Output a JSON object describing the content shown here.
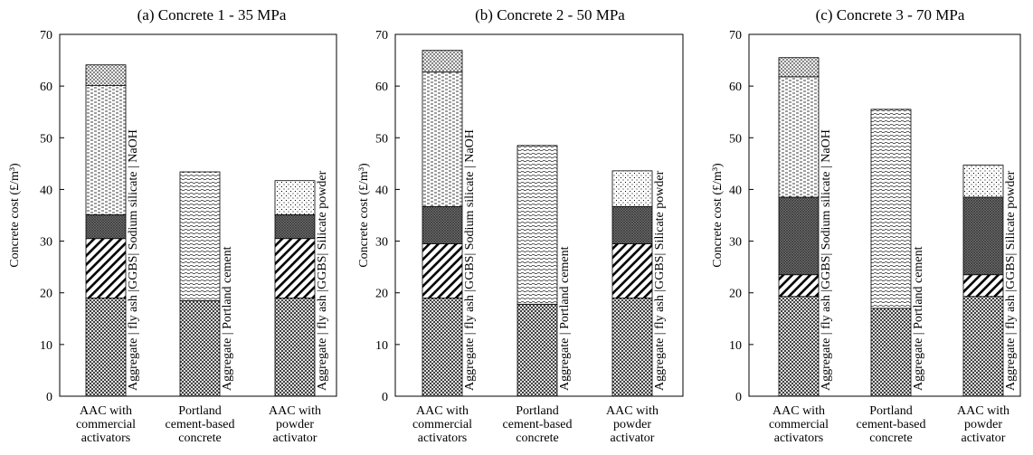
{
  "chart_data": [
    {
      "type": "bar",
      "stacked": true,
      "title": "(a) Concrete 1 - 35 MPa",
      "ylabel": "Concrete cost (£/m³)",
      "ylim": [
        0,
        70
      ],
      "yticks": [
        "0",
        "10",
        "20",
        "30",
        "40",
        "50",
        "60",
        "70"
      ],
      "categories": [
        [
          "AAC with",
          "commercial",
          "activators"
        ],
        [
          "Portland",
          "cement-based",
          "concrete"
        ],
        [
          "AAC with",
          "powder",
          "activator"
        ]
      ],
      "bars": [
        {
          "segments": [
            {
              "component": "Aggregate",
              "value": 19.0,
              "pattern": "pat-agg"
            },
            {
              "component": "fly ash",
              "value": 11.5,
              "pattern": "pat-fly"
            },
            {
              "component": "GGBS",
              "value": 4.6,
              "pattern": "pat-ggbs"
            },
            {
              "component": "Sodium silicate",
              "value": 25.0,
              "pattern": "pat-ss"
            },
            {
              "component": "NaOH",
              "value": 4.0,
              "pattern": "pat-naoh"
            }
          ],
          "label": "Aggregate | fly ash |GGBS| Sodium silicate | NaOH"
        },
        {
          "segments": [
            {
              "component": "Aggregate",
              "value": 18.5,
              "pattern": "pat-agg"
            },
            {
              "component": "Portland cement",
              "value": 24.9,
              "pattern": "pat-pc"
            }
          ],
          "label": "Aggregate  |  Portland cement"
        },
        {
          "segments": [
            {
              "component": "Aggregate",
              "value": 19.0,
              "pattern": "pat-agg"
            },
            {
              "component": "fly ash",
              "value": 11.5,
              "pattern": "pat-fly"
            },
            {
              "component": "GGBS",
              "value": 4.6,
              "pattern": "pat-ggbs"
            },
            {
              "component": "Silicate powder",
              "value": 6.6,
              "pattern": "pat-sp"
            }
          ],
          "label": "Aggregate | fly ash |GGBS| Silicate powder"
        }
      ]
    },
    {
      "type": "bar",
      "stacked": true,
      "title": "(b) Concrete 2 - 50 MPa",
      "ylabel": "Concrete cost (£/m³)",
      "ylim": [
        0,
        70
      ],
      "yticks": [
        "0",
        "10",
        "20",
        "30",
        "40",
        "50",
        "60",
        "70"
      ],
      "categories": [
        [
          "AAC with",
          "commercial",
          "activators"
        ],
        [
          "Portland",
          "cement-based",
          "concrete"
        ],
        [
          "AAC with",
          "powder",
          "activator"
        ]
      ],
      "bars": [
        {
          "segments": [
            {
              "component": "Aggregate",
              "value": 19.0,
              "pattern": "pat-agg"
            },
            {
              "component": "fly ash",
              "value": 10.5,
              "pattern": "pat-fly"
            },
            {
              "component": "GGBS",
              "value": 7.2,
              "pattern": "pat-ggbs"
            },
            {
              "component": "Sodium silicate",
              "value": 26.0,
              "pattern": "pat-ss"
            },
            {
              "component": "NaOH",
              "value": 4.2,
              "pattern": "pat-naoh"
            }
          ],
          "label": "Aggregate | fly ash |GGBS| Sodium silicate | NaOH"
        },
        {
          "segments": [
            {
              "component": "Aggregate",
              "value": 17.8,
              "pattern": "pat-agg"
            },
            {
              "component": "Portland cement",
              "value": 30.7,
              "pattern": "pat-pc"
            }
          ],
          "label": "Aggregate  |  Portland cement"
        },
        {
          "segments": [
            {
              "component": "Aggregate",
              "value": 19.0,
              "pattern": "pat-agg"
            },
            {
              "component": "fly ash",
              "value": 10.5,
              "pattern": "pat-fly"
            },
            {
              "component": "GGBS",
              "value": 7.2,
              "pattern": "pat-ggbs"
            },
            {
              "component": "Silicate powder",
              "value": 6.9,
              "pattern": "pat-sp"
            }
          ],
          "label": "Aggregate | fly ash |GGBS| Silicate powder"
        }
      ]
    },
    {
      "type": "bar",
      "stacked": true,
      "title": "(c) Concrete 3 - 70 MPa",
      "ylabel": "Concrete cost (£/m³)",
      "ylim": [
        0,
        70
      ],
      "yticks": [
        "0",
        "10",
        "20",
        "30",
        "40",
        "50",
        "60",
        "70"
      ],
      "categories": [
        [
          "AAC with",
          "commercial",
          "activators"
        ],
        [
          "Portland",
          "cement-based",
          "concrete"
        ],
        [
          "AAC with",
          "powder",
          "activator"
        ]
      ],
      "bars": [
        {
          "segments": [
            {
              "component": "Aggregate",
              "value": 19.3,
              "pattern": "pat-agg"
            },
            {
              "component": "fly ash",
              "value": 4.2,
              "pattern": "pat-fly"
            },
            {
              "component": "GGBS",
              "value": 15.0,
              "pattern": "pat-ggbs"
            },
            {
              "component": "Sodium silicate",
              "value": 23.3,
              "pattern": "pat-ss"
            },
            {
              "component": "NaOH",
              "value": 3.7,
              "pattern": "pat-naoh"
            }
          ],
          "label": "Aggregate | fly ash |GGBS| Sodium silicate | NaOH"
        },
        {
          "segments": [
            {
              "component": "Aggregate",
              "value": 17.0,
              "pattern": "pat-agg"
            },
            {
              "component": "Portland cement",
              "value": 38.5,
              "pattern": "pat-pc"
            }
          ],
          "label": "Aggregate  |  Portland cement"
        },
        {
          "segments": [
            {
              "component": "Aggregate",
              "value": 19.3,
              "pattern": "pat-agg"
            },
            {
              "component": "fly ash",
              "value": 4.2,
              "pattern": "pat-fly"
            },
            {
              "component": "GGBS",
              "value": 15.0,
              "pattern": "pat-ggbs"
            },
            {
              "component": "Silicate powder",
              "value": 6.2,
              "pattern": "pat-sp"
            }
          ],
          "label": "Aggregate | fly ash |GGBS| Silicate powder"
        }
      ]
    }
  ]
}
